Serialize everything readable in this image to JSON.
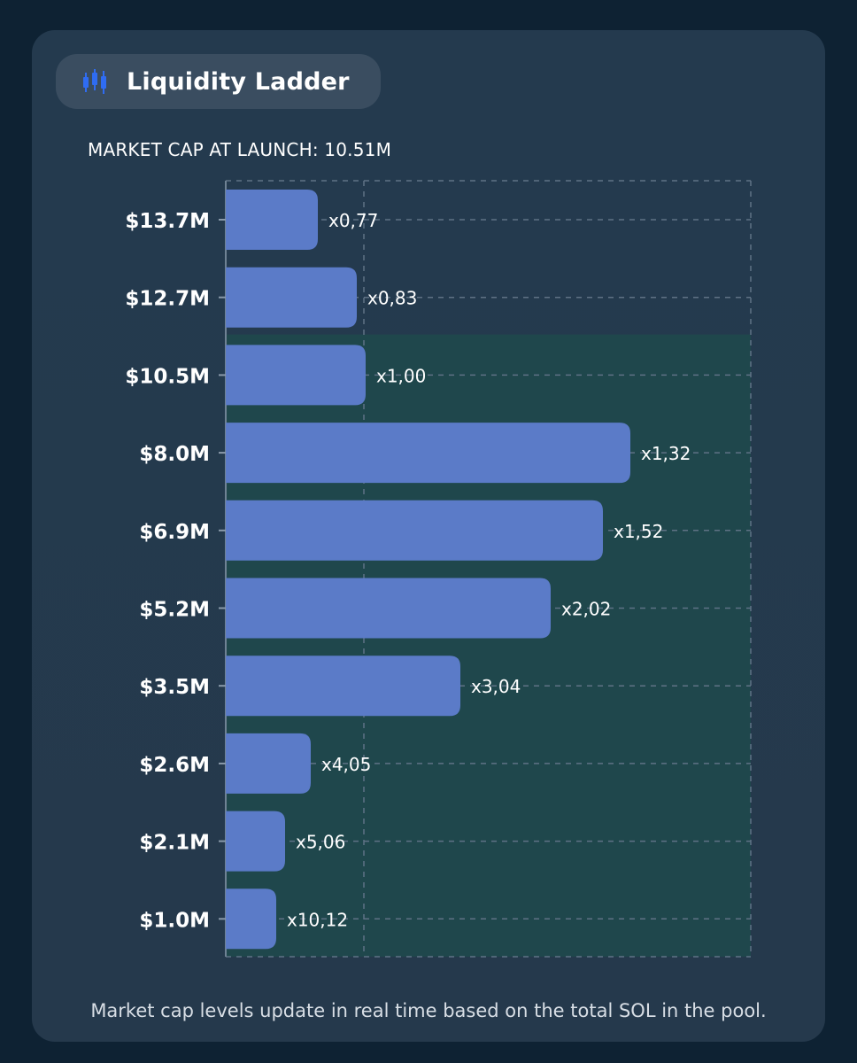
{
  "header": {
    "title": "Liquidity Ladder",
    "icon": "candlestick-chart-icon",
    "accent": "#2f6cf2"
  },
  "chart_data": {
    "type": "bar",
    "orientation": "horizontal",
    "subtitle": "MARKET CAP AT LAUNCH: 10.51M",
    "categories": [
      "$13.7M",
      "$12.7M",
      "$10.5M",
      "$8.0M",
      "$6.9M",
      "$5.2M",
      "$3.5M",
      "$2.6M",
      "$2.1M",
      "$1.0M"
    ],
    "values": [
      0.77,
      0.83,
      1.0,
      1.32,
      1.52,
      2.02,
      3.04,
      4.05,
      5.06,
      10.12
    ],
    "value_labels": [
      "x0,77",
      "x0,83",
      "x1,00",
      "x1,32",
      "x1,52",
      "x2,02",
      "x3,04",
      "x4,05",
      "x5,06",
      "x10,12"
    ],
    "bar_color": "#5b7bc8",
    "highlight_color": "#1f4a4c",
    "grid": true,
    "xlabel": "",
    "ylabel": ""
  },
  "footnote": "Market cap levels update in real time based on the total SOL in the pool."
}
